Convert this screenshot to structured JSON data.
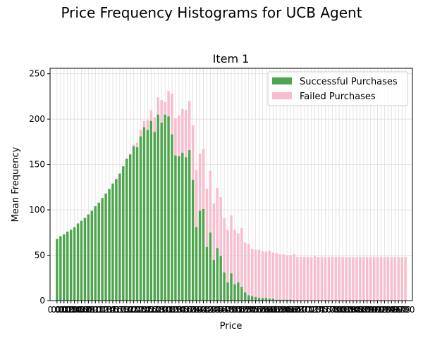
{
  "figure_title": "Price Frequency Histograms for UCB Agent",
  "colors": {
    "success": "#4ea54e",
    "failed": "#f7bdcc",
    "grid": "#dedede"
  },
  "chart_data": {
    "type": "bar",
    "title": "Item 1",
    "xlabel": "Price",
    "ylabel": "Mean Frequency",
    "ylim": [
      0,
      256
    ],
    "yticks": [
      0,
      50,
      100,
      150,
      200,
      250
    ],
    "grid": true,
    "legend_position": "top-right",
    "stacked": true,
    "x_range": [
      0,
      1
    ],
    "x_step": 0.01,
    "x_tick_labels": [
      "0.00",
      "0.01",
      "0.02",
      "0.03",
      "0.04",
      "0.05",
      "0.06",
      "0.07",
      "0.08",
      "0.09",
      "0.10",
      "0.11",
      "0.12",
      "0.13",
      "0.14",
      "0.15",
      "0.16",
      "0.17",
      "0.18",
      "0.19",
      "0.20",
      "0.21",
      "0.22",
      "0.23",
      "0.24",
      "0.25",
      "0.26",
      "0.27",
      "0.28",
      "0.29",
      "0.30",
      "0.31",
      "0.32",
      "0.33",
      "0.34",
      "0.35",
      "0.36",
      "0.37",
      "0.38",
      "0.39",
      "0.40",
      "0.41",
      "0.42",
      "0.43",
      "0.44",
      "0.45",
      "0.46",
      "0.47",
      "0.48",
      "0.49",
      "0.50",
      "0.51",
      "0.52",
      "0.53",
      "0.54",
      "0.55",
      "0.56",
      "0.57",
      "0.58",
      "0.59",
      "0.60",
      "0.61",
      "0.62",
      "0.63",
      "0.64",
      "0.65",
      "0.66",
      "0.67",
      "0.68",
      "0.69",
      "0.70",
      "0.71",
      "0.72",
      "0.73",
      "0.74",
      "0.75",
      "0.76",
      "0.77",
      "0.78",
      "0.79",
      "0.80",
      "0.81",
      "0.82",
      "0.83",
      "0.84",
      "0.85",
      "0.86",
      "0.87",
      "0.88",
      "0.89",
      "0.90",
      "0.91",
      "0.92",
      "0.93",
      "0.94",
      "0.95",
      "0.96",
      "0.97",
      "0.98",
      "0.99",
      "1.00"
    ],
    "series": [
      {
        "name": "Successful Purchases",
        "values": [
          68,
          71,
          73,
          76,
          78,
          81,
          85,
          88,
          91,
          95,
          99,
          104,
          108,
          113,
          118,
          123,
          129,
          134,
          140,
          148,
          156,
          161,
          170,
          169,
          181,
          191,
          188,
          198,
          186,
          205,
          196,
          205,
          203,
          183,
          160,
          159,
          163,
          158,
          166,
          133,
          81,
          99,
          101,
          59,
          75,
          45,
          58,
          49,
          31,
          20,
          30,
          18,
          20,
          15,
          9,
          6,
          5,
          4,
          3,
          3,
          3,
          2,
          2,
          1,
          1,
          1,
          1,
          1,
          0,
          0,
          0,
          0,
          0,
          0,
          0,
          0,
          0,
          0,
          0,
          0,
          0,
          0,
          0,
          0,
          0,
          0,
          0,
          0,
          0,
          0,
          0,
          0,
          0,
          0,
          0,
          0,
          0,
          0,
          0,
          0,
          0
        ]
      },
      {
        "name": "Failed Purchases",
        "values": [
          0,
          0,
          0,
          0,
          0,
          0,
          0,
          0,
          0,
          0,
          0,
          0,
          0,
          0,
          0,
          0,
          0,
          0,
          0,
          0,
          1,
          1,
          2,
          5,
          7,
          7,
          11,
          12,
          16,
          19,
          25,
          14,
          28,
          45,
          41,
          45,
          48,
          52,
          54,
          60,
          63,
          63,
          66,
          64,
          68,
          62,
          66,
          65,
          60,
          58,
          64,
          60,
          54,
          65,
          55,
          56,
          52,
          52,
          53,
          51,
          51,
          53,
          51,
          51,
          50,
          50,
          49,
          49,
          51,
          48,
          48,
          48,
          48,
          48,
          49,
          48,
          48,
          48,
          48,
          48,
          48,
          48,
          48,
          48,
          48,
          48,
          48,
          48,
          48,
          48,
          48,
          48,
          48,
          48,
          48,
          48,
          48,
          48,
          48,
          48,
          48
        ]
      }
    ]
  }
}
